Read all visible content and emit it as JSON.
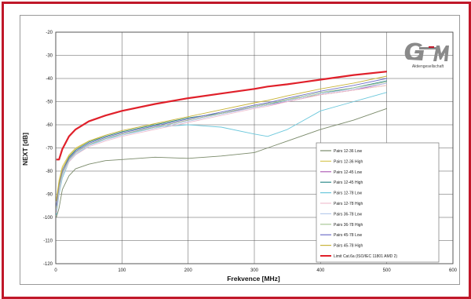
{
  "chart_data": {
    "type": "line",
    "title": "",
    "xlabel": "Frekvence [MHz]",
    "ylabel": "NEXT [dB]",
    "xlim": [
      0,
      600
    ],
    "ylim": [
      -120,
      -20
    ],
    "x_ticks": [
      "0",
      "100",
      "200",
      "300",
      "400",
      "500",
      "600"
    ],
    "y_ticks": [
      "-20",
      "-30",
      "-40",
      "-50",
      "-60",
      "-70",
      "-80",
      "-90",
      "-100",
      "-110",
      "-120"
    ],
    "grid": true,
    "legend_position": "bottom-right",
    "x": [
      1,
      5,
      10,
      20,
      30,
      50,
      75,
      100,
      150,
      200,
      250,
      300,
      320,
      350,
      400,
      450,
      500
    ],
    "series": [
      {
        "name": "Pairs 12-36 Low",
        "color": "#7a8a6a",
        "values": [
          -100,
          -96,
          -88,
          -82,
          -79,
          -77,
          -75.5,
          -75,
          -74,
          -74.5,
          -73.5,
          -72,
          -70,
          -67,
          -62,
          -58,
          -53
        ]
      },
      {
        "name": "Pairs 12-36 High",
        "color": "#d8c85a",
        "values": [
          -92,
          -84,
          -78,
          -73,
          -70,
          -67,
          -65,
          -63,
          -60,
          -57,
          -55,
          -52,
          -51,
          -49,
          -47,
          -45,
          -43
        ]
      },
      {
        "name": "Pairs 12-45 Low",
        "color": "#b060b8",
        "values": [
          -96,
          -87,
          -81,
          -75,
          -72,
          -68.5,
          -66,
          -64,
          -61,
          -58,
          -55,
          -52.5,
          -51.5,
          -50,
          -47,
          -45,
          -42
        ]
      },
      {
        "name": "Pairs 12-45 High",
        "color": "#2f8a8a",
        "values": [
          -95,
          -86,
          -80,
          -74,
          -71,
          -67.5,
          -65,
          -63,
          -60,
          -57,
          -55,
          -52,
          -51,
          -49.5,
          -46.5,
          -44,
          -41
        ]
      },
      {
        "name": "Pairs 12-78 Low",
        "color": "#6cc8dc",
        "values": [
          -99,
          -90,
          -83,
          -76,
          -73,
          -69,
          -66,
          -64.5,
          -61,
          -60,
          -61,
          -64,
          -65,
          -62,
          -54,
          -50,
          -46
        ]
      },
      {
        "name": "Pairs 12-78 High",
        "color": "#f0c0d0",
        "values": [
          -98,
          -89,
          -82,
          -76,
          -73,
          -69.5,
          -67,
          -65,
          -62,
          -59,
          -56,
          -53,
          -52,
          -50,
          -47,
          -45,
          -43
        ]
      },
      {
        "name": "Pairs 36-78 Low",
        "color": "#b8ccec",
        "values": [
          -97,
          -88,
          -81.5,
          -75.5,
          -72.5,
          -69,
          -66.5,
          -64.5,
          -61.5,
          -58.5,
          -55.5,
          -52.5,
          -51.5,
          -49.5,
          -46.5,
          -44.5,
          -42
        ]
      },
      {
        "name": "Pairs 36-78 High",
        "color": "#a8c898",
        "values": [
          -96,
          -87,
          -81,
          -75,
          -72,
          -68.5,
          -66,
          -64,
          -61,
          -58,
          -55,
          -52,
          -51,
          -49,
          -46,
          -44,
          -41.5
        ]
      },
      {
        "name": "Pairs 45-78 Low",
        "color": "#7070c8",
        "values": [
          -95,
          -86,
          -80,
          -74.5,
          -71.5,
          -68,
          -65.5,
          -63.5,
          -60.5,
          -57.5,
          -54.5,
          -51.5,
          -50.5,
          -48.5,
          -45.5,
          -43,
          -40
        ]
      },
      {
        "name": "Pairs 45-78 High",
        "color": "#c8b43a",
        "values": [
          -93,
          -85,
          -79,
          -73.5,
          -70.5,
          -67,
          -64.5,
          -62.5,
          -59.5,
          -56.5,
          -53.5,
          -50.5,
          -49.5,
          -47.5,
          -44.5,
          -42,
          -39
        ]
      },
      {
        "name": "Limit Cat.6a (ISO/IEC 11801 AMD 2)",
        "color": "#e0202a",
        "values": [
          -75,
          -75,
          -70.5,
          -65,
          -62,
          -58.5,
          -56,
          -54,
          -51,
          -48.5,
          -46.5,
          -44.5,
          -43.5,
          -42.5,
          -40.5,
          -38.5,
          -37
        ]
      }
    ]
  },
  "logo": {
    "text": "Aktiengesellschaft"
  }
}
